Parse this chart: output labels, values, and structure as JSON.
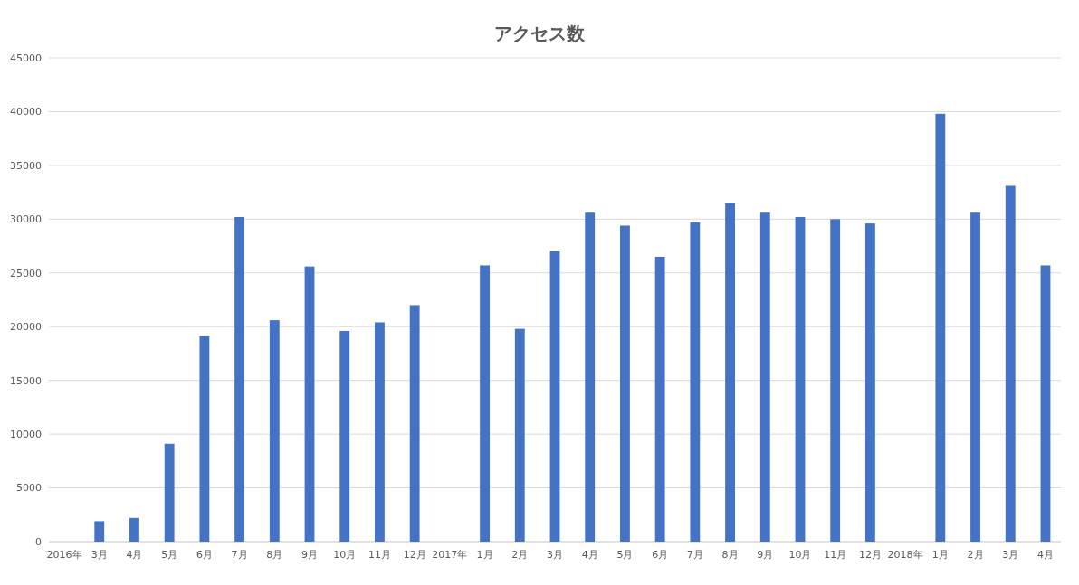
{
  "chart_data": {
    "type": "bar",
    "title": "アクセス数",
    "categories": [
      "2016年",
      "3月",
      "4月",
      "5月",
      "6月",
      "7月",
      "8月",
      "9月",
      "10月",
      "11月",
      "12月",
      "2017年",
      "1月",
      "2月",
      "3月",
      "4月",
      "5月",
      "6月",
      "7月",
      "8月",
      "9月",
      "10月",
      "11月",
      "12月",
      "2018年",
      "1月",
      "2月",
      "3月",
      "4月"
    ],
    "values": [
      null,
      1900,
      2200,
      9100,
      19100,
      30200,
      20600,
      25600,
      19600,
      20400,
      22000,
      null,
      25700,
      19800,
      27000,
      30600,
      29400,
      26500,
      29700,
      31500,
      30600,
      30200,
      30000,
      29600,
      null,
      39800,
      30600,
      33100,
      25700
    ],
    "color": "#4472c4",
    "ylim": [
      0,
      45000
    ],
    "yticks": [
      0,
      5000,
      10000,
      15000,
      20000,
      25000,
      30000,
      35000,
      40000,
      45000
    ],
    "grid": "y"
  }
}
